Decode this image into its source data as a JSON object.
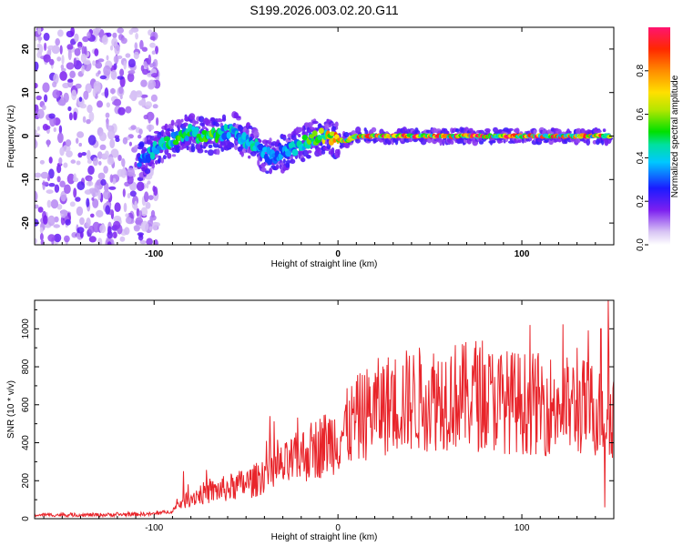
{
  "chart_data": [
    {
      "type": "heatmap",
      "title": "S199.2026.003.02.20.G11",
      "xlabel": "Height of straight line (km)",
      "ylabel": "Frequency (Hz)",
      "xlim": [
        -165,
        150
      ],
      "ylim": [
        -25,
        25
      ],
      "x_ticks": [
        -100,
        0,
        100
      ],
      "x_tick_labels": [
        "-100",
        "0",
        "100"
      ],
      "y_ticks": [
        20,
        10,
        0,
        -10,
        -20
      ],
      "y_tick_labels": [
        "20",
        "10",
        "0",
        "-10",
        "-20"
      ],
      "colorbar": {
        "label": "Normalized spectral amplitude",
        "range": [
          0,
          1
        ],
        "ticks": [
          0.0,
          0.2,
          0.4,
          0.6,
          0.8
        ],
        "tick_labels": [
          "0.0",
          "0.2",
          "0.4",
          "0.6",
          "0.8"
        ]
      },
      "frequency_track": {
        "x": [
          -108,
          -100,
          -95,
          -90,
          -85,
          -80,
          -75,
          -70,
          -65,
          -60,
          -55,
          -50,
          -45,
          -40,
          -35,
          -30,
          -25,
          -20,
          -15,
          -10,
          -5,
          0,
          5,
          10,
          20,
          40,
          60,
          80,
          100,
          120,
          140,
          148
        ],
        "freq": [
          -6,
          -3,
          -2,
          -1,
          0,
          1,
          0,
          0,
          0,
          1,
          1,
          -1,
          -2,
          -4,
          -5,
          -4,
          -3,
          -2,
          -1,
          0,
          0,
          -1,
          -1,
          0,
          0,
          0,
          0,
          0,
          0,
          0,
          0,
          0
        ],
        "amplitude": [
          0.3,
          0.4,
          0.45,
          0.45,
          0.5,
          0.45,
          0.5,
          0.55,
          0.5,
          0.4,
          0.45,
          0.4,
          0.4,
          0.35,
          0.3,
          0.35,
          0.4,
          0.45,
          0.5,
          0.6,
          0.7,
          0.75,
          0.8,
          0.9,
          0.95,
          0.95,
          0.95,
          0.95,
          0.95,
          0.95,
          0.9,
          0.9
        ]
      },
      "noise_region_x": [
        -165,
        -98
      ]
    },
    {
      "type": "line",
      "title": "",
      "xlabel": "Height of straight line (km)",
      "ylabel": "SNR (10 * v/v)",
      "xlim": [
        -165,
        150
      ],
      "ylim": [
        0,
        1150
      ],
      "x_ticks": [
        -100,
        0,
        100
      ],
      "x_tick_labels": [
        "-100",
        "0",
        "100"
      ],
      "y_ticks": [
        0,
        200,
        400,
        600,
        800,
        1000
      ],
      "y_tick_labels": [
        "0",
        "200",
        "400",
        "600",
        "800",
        "1000"
      ],
      "series": [
        {
          "name": "SNR",
          "color": "#e8242a",
          "envelope_x": [
            -165,
            -130,
            -100,
            -90,
            -85,
            -75,
            -60,
            -45,
            -38,
            -30,
            -20,
            -10,
            0,
            10,
            20,
            30,
            45,
            60,
            75,
            90,
            100,
            115,
            130,
            140,
            150
          ],
          "envelope_y": [
            20,
            20,
            25,
            40,
            90,
            130,
            160,
            200,
            260,
            270,
            330,
            380,
            430,
            520,
            580,
            610,
            630,
            650,
            640,
            620,
            610,
            600,
            590,
            580,
            560
          ],
          "spikes": [
            {
              "x": -84,
              "y": 250
            },
            {
              "x": -37,
              "y": 540
            },
            {
              "x": 75,
              "y": 935
            },
            {
              "x": 130,
              "y": 900
            },
            {
              "x": 143,
              "y": 1000
            },
            {
              "x": 147,
              "y": 1150
            },
            {
              "x": 145,
              "y": 60
            }
          ]
        }
      ]
    }
  ]
}
